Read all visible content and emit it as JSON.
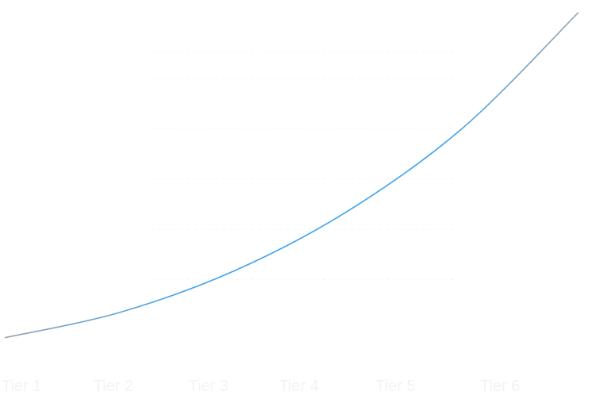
{
  "chart_data": {
    "type": "line",
    "categories": [
      "Tier 1",
      "Tier 2",
      "Tier 3",
      "Tier 4",
      "Tier 5",
      "Tier 6"
    ],
    "series": [
      {
        "values": [
          1.4,
          3.4,
          6.7,
          11.5,
          18.1,
          27.2
        ]
      }
    ],
    "xlabel": "",
    "ylabel": "",
    "ylim": [
      0,
      28
    ],
    "grid": true,
    "legend": "none",
    "colors": {
      "line_mid": "#3fa3ef",
      "line_end": "#9aa3ad",
      "grid": "#f7f7f7",
      "tick_label": "#f3f3f3"
    }
  }
}
